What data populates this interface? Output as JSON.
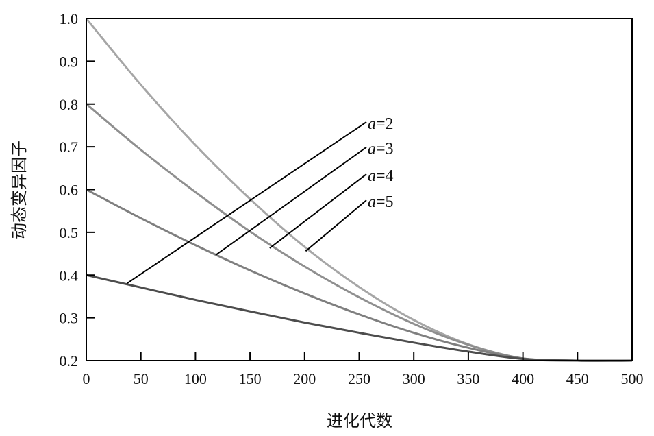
{
  "chart_data": {
    "type": "line",
    "title": "",
    "xlabel": "进化代数",
    "ylabel": "动态变异因子",
    "xlim": [
      0,
      500
    ],
    "ylim": [
      0.2,
      1.0
    ],
    "xticks": [
      0,
      50,
      100,
      150,
      200,
      250,
      300,
      350,
      400,
      450,
      500
    ],
    "yticks": [
      "0.2",
      "0.3",
      "0.4",
      "0.5",
      "0.6",
      "0.7",
      "0.8",
      "0.9",
      "1.0"
    ],
    "grid": false,
    "legend": "none",
    "x": [
      0,
      50,
      100,
      150,
      200,
      250,
      300,
      350,
      400,
      450,
      500
    ],
    "series": [
      {
        "name": "a=2",
        "color": "#4d4d4d",
        "values": [
          0.4,
          0.371,
          0.342,
          0.315,
          0.289,
          0.265,
          0.242,
          0.221,
          0.204,
          0.2,
          0.2
        ]
      },
      {
        "name": "a=3",
        "color": "#7f7f7f",
        "values": [
          0.6,
          0.533,
          0.47,
          0.411,
          0.357,
          0.308,
          0.265,
          0.23,
          0.205,
          0.2,
          0.2
        ]
      },
      {
        "name": "a=4",
        "color": "#8f8f8f",
        "values": [
          0.8,
          0.693,
          0.594,
          0.502,
          0.42,
          0.348,
          0.286,
          0.237,
          0.205,
          0.2,
          0.2
        ]
      },
      {
        "name": "a=5",
        "color": "#a6a6a6",
        "values": [
          1.0,
          0.845,
          0.704,
          0.578,
          0.466,
          0.372,
          0.295,
          0.238,
          0.205,
          0.2,
          0.2
        ]
      }
    ],
    "annotations": [
      {
        "italic": "a",
        "text": "=2",
        "from": [
          37.6,
          0.381
        ],
        "to": [
          256.6,
          0.758
        ]
      },
      {
        "italic": "a",
        "text": "=3",
        "from": [
          118.6,
          0.447
        ],
        "to": [
          256.6,
          0.699
        ]
      },
      {
        "italic": "a",
        "text": "=4",
        "from": [
          168,
          0.463
        ],
        "to": [
          256.6,
          0.636
        ]
      },
      {
        "italic": "a",
        "text": "=5",
        "from": [
          201,
          0.456
        ],
        "to": [
          256.6,
          0.575
        ]
      }
    ]
  }
}
